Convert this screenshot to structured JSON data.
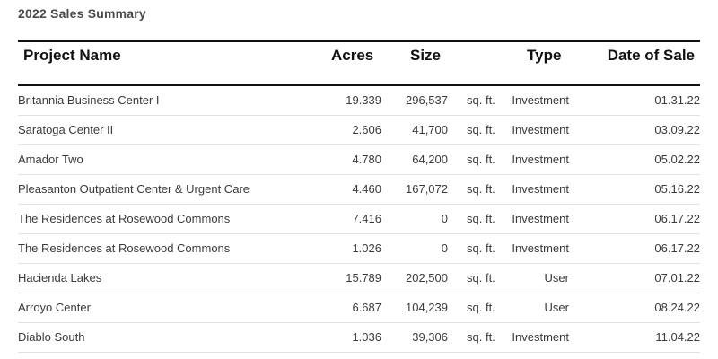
{
  "title": "2022 Sales Summary",
  "columns": {
    "project": "Project Name",
    "acres": "Acres",
    "size": "Size",
    "type": "Type",
    "date": "Date of Sale"
  },
  "rows": [
    {
      "project": "Britannia Business Center I",
      "acres": "19.339",
      "size": "296,537",
      "unit": "sq. ft.",
      "type": "Investment",
      "date": "01.31.22"
    },
    {
      "project": "Saratoga Center II",
      "acres": "2.606",
      "size": "41,700",
      "unit": "sq. ft.",
      "type": "Investment",
      "date": "03.09.22"
    },
    {
      "project": "Amador Two",
      "acres": "4.780",
      "size": "64,200",
      "unit": "sq. ft.",
      "type": "Investment",
      "date": "05.02.22"
    },
    {
      "project": "Pleasanton Outpatient Center & Urgent Care",
      "acres": "4.460",
      "size": "167,072",
      "unit": "sq. ft.",
      "type": "Investment",
      "date": "05.16.22"
    },
    {
      "project": "The Residences at Rosewood Commons",
      "acres": "7.416",
      "size": "0",
      "unit": "sq. ft.",
      "type": "Investment",
      "date": "06.17.22"
    },
    {
      "project": "The Residences at Rosewood Commons",
      "acres": "1.026",
      "size": "0",
      "unit": "sq. ft.",
      "type": "Investment",
      "date": "06.17.22"
    },
    {
      "project": "Hacienda Lakes",
      "acres": "15.789",
      "size": "202,500",
      "unit": "sq. ft.",
      "type": "User",
      "date": "07.01.22"
    },
    {
      "project": "Arroyo Center",
      "acres": "6.687",
      "size": "104,239",
      "unit": "sq. ft.",
      "type": "User",
      "date": "08.24.22"
    },
    {
      "project": "Diablo South",
      "acres": "1.036",
      "size": "39,306",
      "unit": "sq. ft.",
      "type": "Investment",
      "date": "11.04.22"
    }
  ]
}
